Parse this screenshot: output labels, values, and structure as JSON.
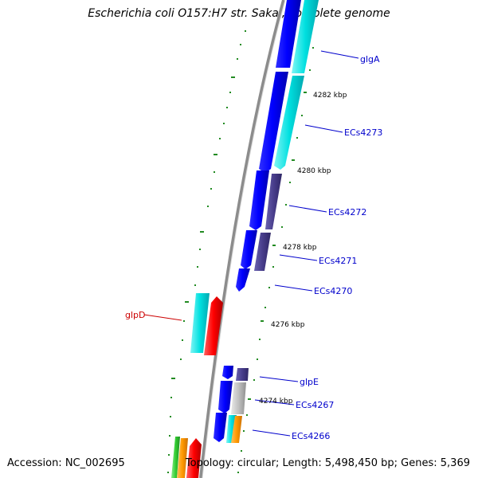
{
  "title": "Escherichia coli O157:H7 str. Sakai, complete genome",
  "footer": {
    "accession": "Accession: NC_002695",
    "topology": "Topology: circular; Length: 5,498,450 bp; Genes: 5,369"
  },
  "colors": {
    "backbone": "#8c8c8c",
    "forward_label": "#0000cc",
    "reverse_label": "#cc0000",
    "tick": "#228b22",
    "blue": "#0000ff",
    "cyan": "#00dddd",
    "purple": "#483d8b",
    "red": "#ff0000",
    "gray": "#c0c0c0",
    "orange": "#ff9900",
    "green": "#33cc33"
  },
  "scale_labels": [
    "4282 kbp",
    "4280 kbp",
    "4278 kbp",
    "4276 kbp",
    "4274 kbp"
  ],
  "gene_labels": [
    {
      "name": "glgA",
      "strand": "forward"
    },
    {
      "name": "ECs4273",
      "strand": "forward"
    },
    {
      "name": "ECs4272",
      "strand": "forward"
    },
    {
      "name": "ECs4271",
      "strand": "forward"
    },
    {
      "name": "ECs4270",
      "strand": "forward"
    },
    {
      "name": "glpD",
      "strand": "reverse"
    },
    {
      "name": "glpE",
      "strand": "forward"
    },
    {
      "name": "ECs4267",
      "strand": "forward"
    },
    {
      "name": "ECs4266",
      "strand": "forward"
    }
  ]
}
